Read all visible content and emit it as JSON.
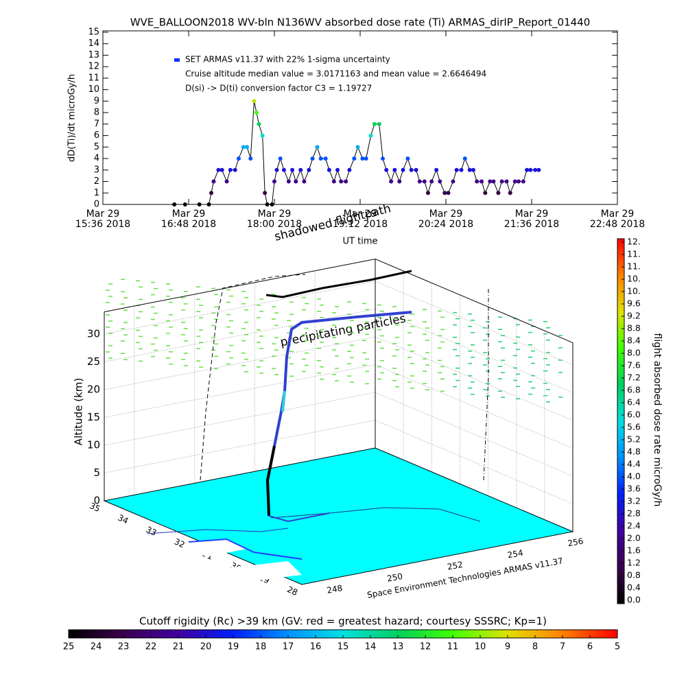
{
  "chart_data": [
    {
      "type": "line",
      "title": "WVE_BALLOON2018 WV-bln N136WV absorbed dose rate (Ti) ARMAS_dirIP_Report_01440",
      "ylabel": "dD(Ti)/dt microGy/h",
      "xlabel": "UT time",
      "legend": [
        "SET ARMAS v11.37 with 22% 1-sigma uncertainty",
        "Cruise altitude median value = 3.0171163 and mean value = 2.6646494",
        "D(si) -> D(ti) conversion factor C3 = 1.19727"
      ],
      "legend_color": "#1030ff",
      "line_color": "#000000",
      "x": [
        "2018-03-29T16:36",
        "2018-03-29T16:45",
        "2018-03-29T16:57",
        "2018-03-29T17:05",
        "2018-03-29T17:07",
        "2018-03-29T17:09",
        "2018-03-29T17:13",
        "2018-03-29T17:16",
        "2018-03-29T17:20",
        "2018-03-29T17:23",
        "2018-03-29T17:27",
        "2018-03-29T17:30",
        "2018-03-29T17:34",
        "2018-03-29T17:37",
        "2018-03-29T17:40",
        "2018-03-29T17:43",
        "2018-03-29T17:45",
        "2018-03-29T17:47",
        "2018-03-29T17:50",
        "2018-03-29T17:52",
        "2018-03-29T17:54",
        "2018-03-29T17:58",
        "2018-03-29T18:00",
        "2018-03-29T18:02",
        "2018-03-29T18:05",
        "2018-03-29T18:08",
        "2018-03-29T18:12",
        "2018-03-29T18:15",
        "2018-03-29T18:18",
        "2018-03-29T18:22",
        "2018-03-29T18:25",
        "2018-03-29T18:29",
        "2018-03-29T18:32",
        "2018-03-29T18:36",
        "2018-03-29T18:39",
        "2018-03-29T18:43",
        "2018-03-29T18:46",
        "2018-03-29T18:50",
        "2018-03-29T18:53",
        "2018-03-29T18:56",
        "2018-03-29T19:00",
        "2018-03-29T19:03",
        "2018-03-29T19:07",
        "2018-03-29T19:10",
        "2018-03-29T19:14",
        "2018-03-29T19:17",
        "2018-03-29T19:21",
        "2018-03-29T19:24",
        "2018-03-29T19:28",
        "2018-03-29T19:31",
        "2018-03-29T19:34",
        "2018-03-29T19:38",
        "2018-03-29T19:41",
        "2018-03-29T19:45",
        "2018-03-29T19:48",
        "2018-03-29T19:52",
        "2018-03-29T19:55",
        "2018-03-29T19:59",
        "2018-03-29T20:02",
        "2018-03-29T20:06",
        "2018-03-29T20:09",
        "2018-03-29T20:12",
        "2018-03-29T20:16",
        "2018-03-29T20:19",
        "2018-03-29T20:23",
        "2018-03-29T20:26",
        "2018-03-29T20:30",
        "2018-03-29T20:33",
        "2018-03-29T20:37",
        "2018-03-29T20:40",
        "2018-03-29T20:44",
        "2018-03-29T20:47",
        "2018-03-29T20:50",
        "2018-03-29T20:54",
        "2018-03-29T20:57",
        "2018-03-29T21:01",
        "2018-03-29T21:04",
        "2018-03-29T21:08",
        "2018-03-29T21:11",
        "2018-03-29T21:15",
        "2018-03-29T21:18",
        "2018-03-29T21:22",
        "2018-03-29T21:25",
        "2018-03-29T21:29",
        "2018-03-29T21:32",
        "2018-03-29T21:35",
        "2018-03-29T21:39",
        "2018-03-29T21:42"
      ],
      "values": [
        0,
        0,
        0,
        0,
        1,
        2,
        3,
        3,
        2,
        3,
        3,
        4,
        5,
        5,
        4,
        9,
        8,
        7,
        6,
        1,
        0,
        0,
        2,
        3,
        4,
        3,
        2,
        3,
        2,
        3,
        2,
        3,
        4,
        5,
        4,
        4,
        3,
        2,
        3,
        2,
        2,
        3,
        4,
        5,
        4,
        4,
        6,
        7,
        7,
        4,
        3,
        2,
        3,
        2,
        3,
        4,
        3,
        3,
        2,
        2,
        1,
        2,
        3,
        2,
        1,
        1,
        2,
        3,
        3,
        4,
        3,
        3,
        2,
        2,
        1,
        2,
        2,
        1,
        2,
        2,
        1,
        2,
        2,
        2,
        3,
        3,
        3,
        3
      ],
      "xlim": [
        "2018-03-29T15:36",
        "2018-03-29T22:48"
      ],
      "xticks": [
        {
          "value": "2018-03-29T15:36",
          "label": "Mar 29\n15:36 2018"
        },
        {
          "value": "2018-03-29T16:48",
          "label": "Mar 29\n16:48 2018"
        },
        {
          "value": "2018-03-29T18:00",
          "label": "Mar 29\n18:00 2018"
        },
        {
          "value": "2018-03-29T19:12",
          "label": "Mar 29\n19:12 2018"
        },
        {
          "value": "2018-03-29T20:24",
          "label": "Mar 29\n20:24 2018"
        },
        {
          "value": "2018-03-29T21:36",
          "label": "Mar 29\n21:36 2018"
        },
        {
          "value": "2018-03-29T22:48",
          "label": "Mar 29\n22:48 2018"
        }
      ],
      "ylim": [
        0,
        15
      ],
      "yticks": [
        0,
        1,
        2,
        3,
        4,
        5,
        6,
        7,
        8,
        9,
        10,
        11,
        12,
        13,
        14,
        15
      ]
    },
    {
      "type": "surface3d",
      "zlabel": "Altitude (km)",
      "annotations": [
        "shadowed flightpath",
        "precipitating particles"
      ],
      "footer": "Space Environment Technologies ARMAS v11.37",
      "floor_color": "#00ffff",
      "latlim": [
        28,
        35
      ],
      "latticks": [
        28,
        29,
        30,
        31,
        32,
        33,
        34,
        35
      ],
      "lonlim": [
        247,
        256
      ],
      "lonticks": [
        248,
        250,
        252,
        254,
        256
      ],
      "zlim": [
        0,
        34
      ],
      "zticks": [
        0,
        5,
        10,
        15,
        20,
        25,
        30
      ]
    },
    {
      "type": "colorbar",
      "title": "flight absorbed dose rate microGy/h",
      "colormap": [
        "#000000",
        "#3c0050",
        "#4000a0",
        "#0020ff",
        "#0090ff",
        "#00e0e0",
        "#00d060",
        "#40ff00",
        "#e0e000",
        "#ff8000",
        "#ff0000"
      ],
      "ylim": [
        0,
        11.6
      ],
      "yticks": [
        {
          "value": 0,
          "label": "0.0"
        },
        0.4,
        0.8,
        1.2,
        1.6,
        {
          "value": 2,
          "label": "2.0"
        },
        2.4,
        2.8,
        3.2,
        3.6,
        {
          "value": 4,
          "label": "4.0"
        },
        4.4,
        4.8,
        5.2,
        5.6,
        {
          "value": 6,
          "label": "6.0"
        },
        6.4,
        6.8,
        7.2,
        7.6,
        {
          "value": 8,
          "label": "8.0"
        },
        8.4,
        8.8,
        9.2,
        9.6,
        {
          "value": 10,
          "label": "10."
        },
        {
          "value": 10.4,
          "label": "10."
        },
        {
          "value": 10.8,
          "label": "11."
        },
        {
          "value": 11.2,
          "label": "11."
        },
        {
          "value": 11.6,
          "label": "12."
        }
      ]
    },
    {
      "type": "colorbar",
      "title": "Cutoff rigidity (Rc) >39 km (GV: red = greatest hazard; courtesy SSSRC; Kp=1)",
      "colormap": [
        "#000000",
        "#3c0050",
        "#4000a0",
        "#0020ff",
        "#0090ff",
        "#00e0e0",
        "#00d060",
        "#40ff00",
        "#e0e000",
        "#ff8000",
        "#ff0000"
      ],
      "xlim": [
        25,
        5
      ],
      "xticks": [
        25,
        24,
        23,
        22,
        21,
        20,
        19,
        18,
        17,
        16,
        15,
        14,
        13,
        12,
        11,
        10,
        9,
        8,
        7,
        6,
        5
      ]
    }
  ]
}
